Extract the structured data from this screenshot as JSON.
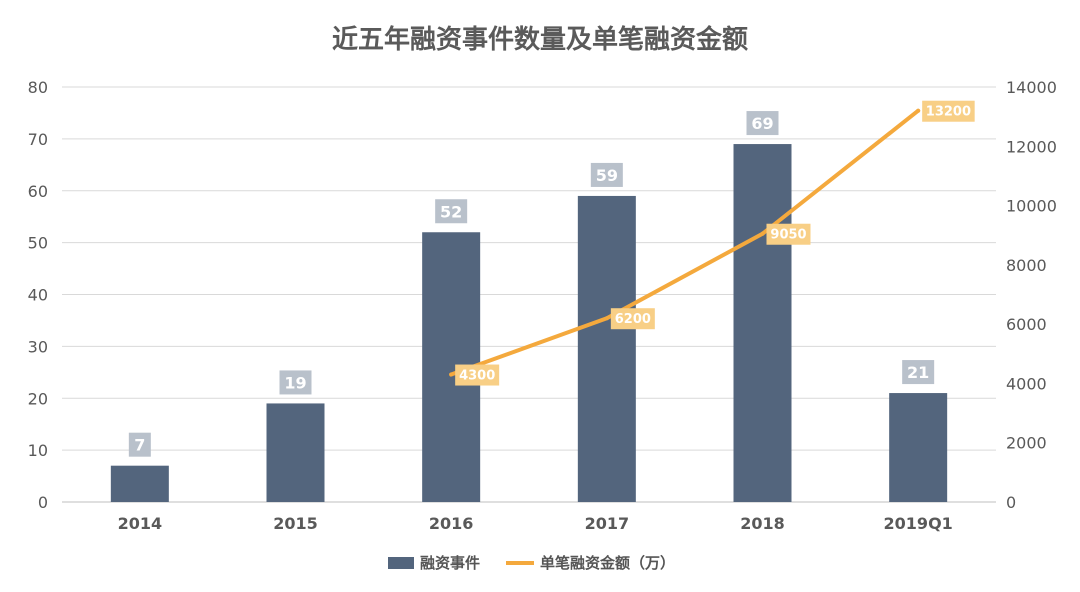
{
  "chart_data": {
    "type": "bar",
    "title": "近五年融资事件数量及单笔融资金额",
    "categories": [
      "2014",
      "2015",
      "2016",
      "2017",
      "2018",
      "2019Q1"
    ],
    "series": [
      {
        "name": "融资事件",
        "type": "bar",
        "axis": "left",
        "values": [
          7,
          19,
          52,
          59,
          69,
          21
        ],
        "data_labels": [
          "7",
          "19",
          "52",
          "59",
          "69",
          "21"
        ]
      },
      {
        "name": "单笔融资金额（万）",
        "type": "line",
        "axis": "right",
        "x": [
          "2016",
          "2017",
          "2018",
          "2019Q1"
        ],
        "values": [
          4300,
          6200,
          9050,
          13200
        ],
        "data_labels": [
          "4300",
          "6200",
          "9050",
          "13200"
        ]
      }
    ],
    "y_left": {
      "min": 0,
      "max": 80,
      "ticks": [
        "0",
        "10",
        "20",
        "30",
        "40",
        "50",
        "60",
        "70",
        "80"
      ]
    },
    "y_right": {
      "min": 0,
      "max": 14000,
      "ticks": [
        "0",
        "2000",
        "4000",
        "6000",
        "8000",
        "10000",
        "12000",
        "14000"
      ]
    },
    "grid": true,
    "legend": "bottom",
    "colors": {
      "bar": "#53657d",
      "line": "#f4a93d",
      "bar_label_bg": "#b9c1cb",
      "line_label_bg": "#f8cf86"
    }
  }
}
